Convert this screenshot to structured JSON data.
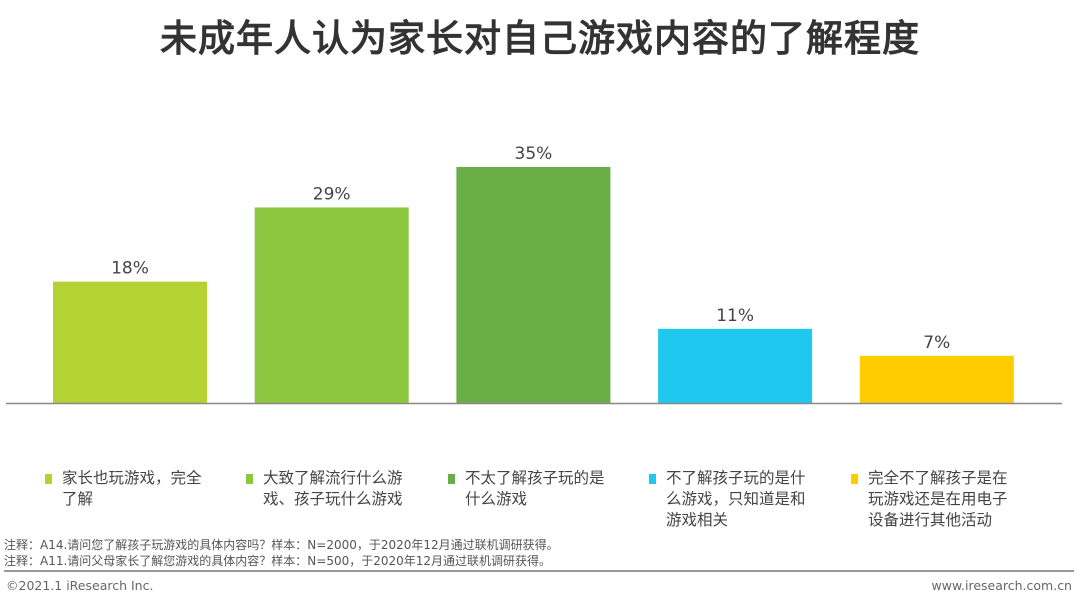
{
  "chart_data": {
    "type": "bar",
    "title": "未成年人认为家长对自己游戏内容的了解程度",
    "categories": [
      "家长也玩游戏，完全了解",
      "大致了解流行什么游戏、孩子玩什么游戏",
      "不太了解孩子玩的是什么游戏",
      "不了解孩子玩的是什么游戏，只知道是和游戏相关",
      "完全不了解孩子是在玩游戏还是在用电子设备进行其他活动"
    ],
    "values": [
      18,
      29,
      35,
      11,
      7
    ],
    "labels": [
      "18%",
      "29%",
      "35%",
      "11%",
      "7%"
    ],
    "colors": [
      "#b4d234",
      "#8dc63f",
      "#68ad45",
      "#1ec8ef",
      "#ffcc00"
    ],
    "ylim": [
      0,
      35
    ],
    "xlabel": "",
    "ylabel": "",
    "legend": "bottom",
    "grid": false
  },
  "notes": [
    "注释：A14.请问您了解孩子玩游戏的具体内容吗？样本：N=2000，于2020年12月通过联机调研获得。",
    "注释：A11.请问父母家长了解您游戏的具体内容？样本：N=500，于2020年12月通过联机调研获得。"
  ],
  "footer": {
    "copyright": "©2021.1 iResearch Inc.",
    "url": "www.iresearch.com.cn"
  }
}
